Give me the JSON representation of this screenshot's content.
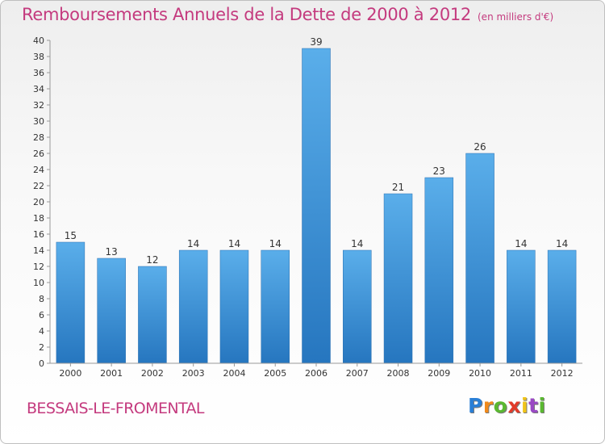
{
  "header": {
    "title": "Remboursements Annuels de la Dette de 2000 à 2012",
    "subtitle": "(en milliers d'€)"
  },
  "footer": {
    "commune": "BESSAIS-LE-FROMENTAL",
    "logo_letters": [
      "P",
      "r",
      "o",
      "x",
      "i",
      "t",
      "i"
    ]
  },
  "chart_data": {
    "type": "bar",
    "title": "Remboursements Annuels de la Dette de 2000 à 2012",
    "subtitle": "(en milliers d'€)",
    "xlabel": "",
    "ylabel": "",
    "categories": [
      "2000",
      "2001",
      "2002",
      "2003",
      "2004",
      "2005",
      "2006",
      "2007",
      "2008",
      "2009",
      "2010",
      "2011",
      "2012"
    ],
    "values": [
      15,
      13,
      12,
      14,
      14,
      14,
      39,
      14,
      21,
      23,
      26,
      14,
      14
    ],
    "ylim": [
      0,
      40
    ],
    "ytick_step": 2,
    "grid": false,
    "data_labels": true,
    "bar_color": "#3d8fd6"
  }
}
